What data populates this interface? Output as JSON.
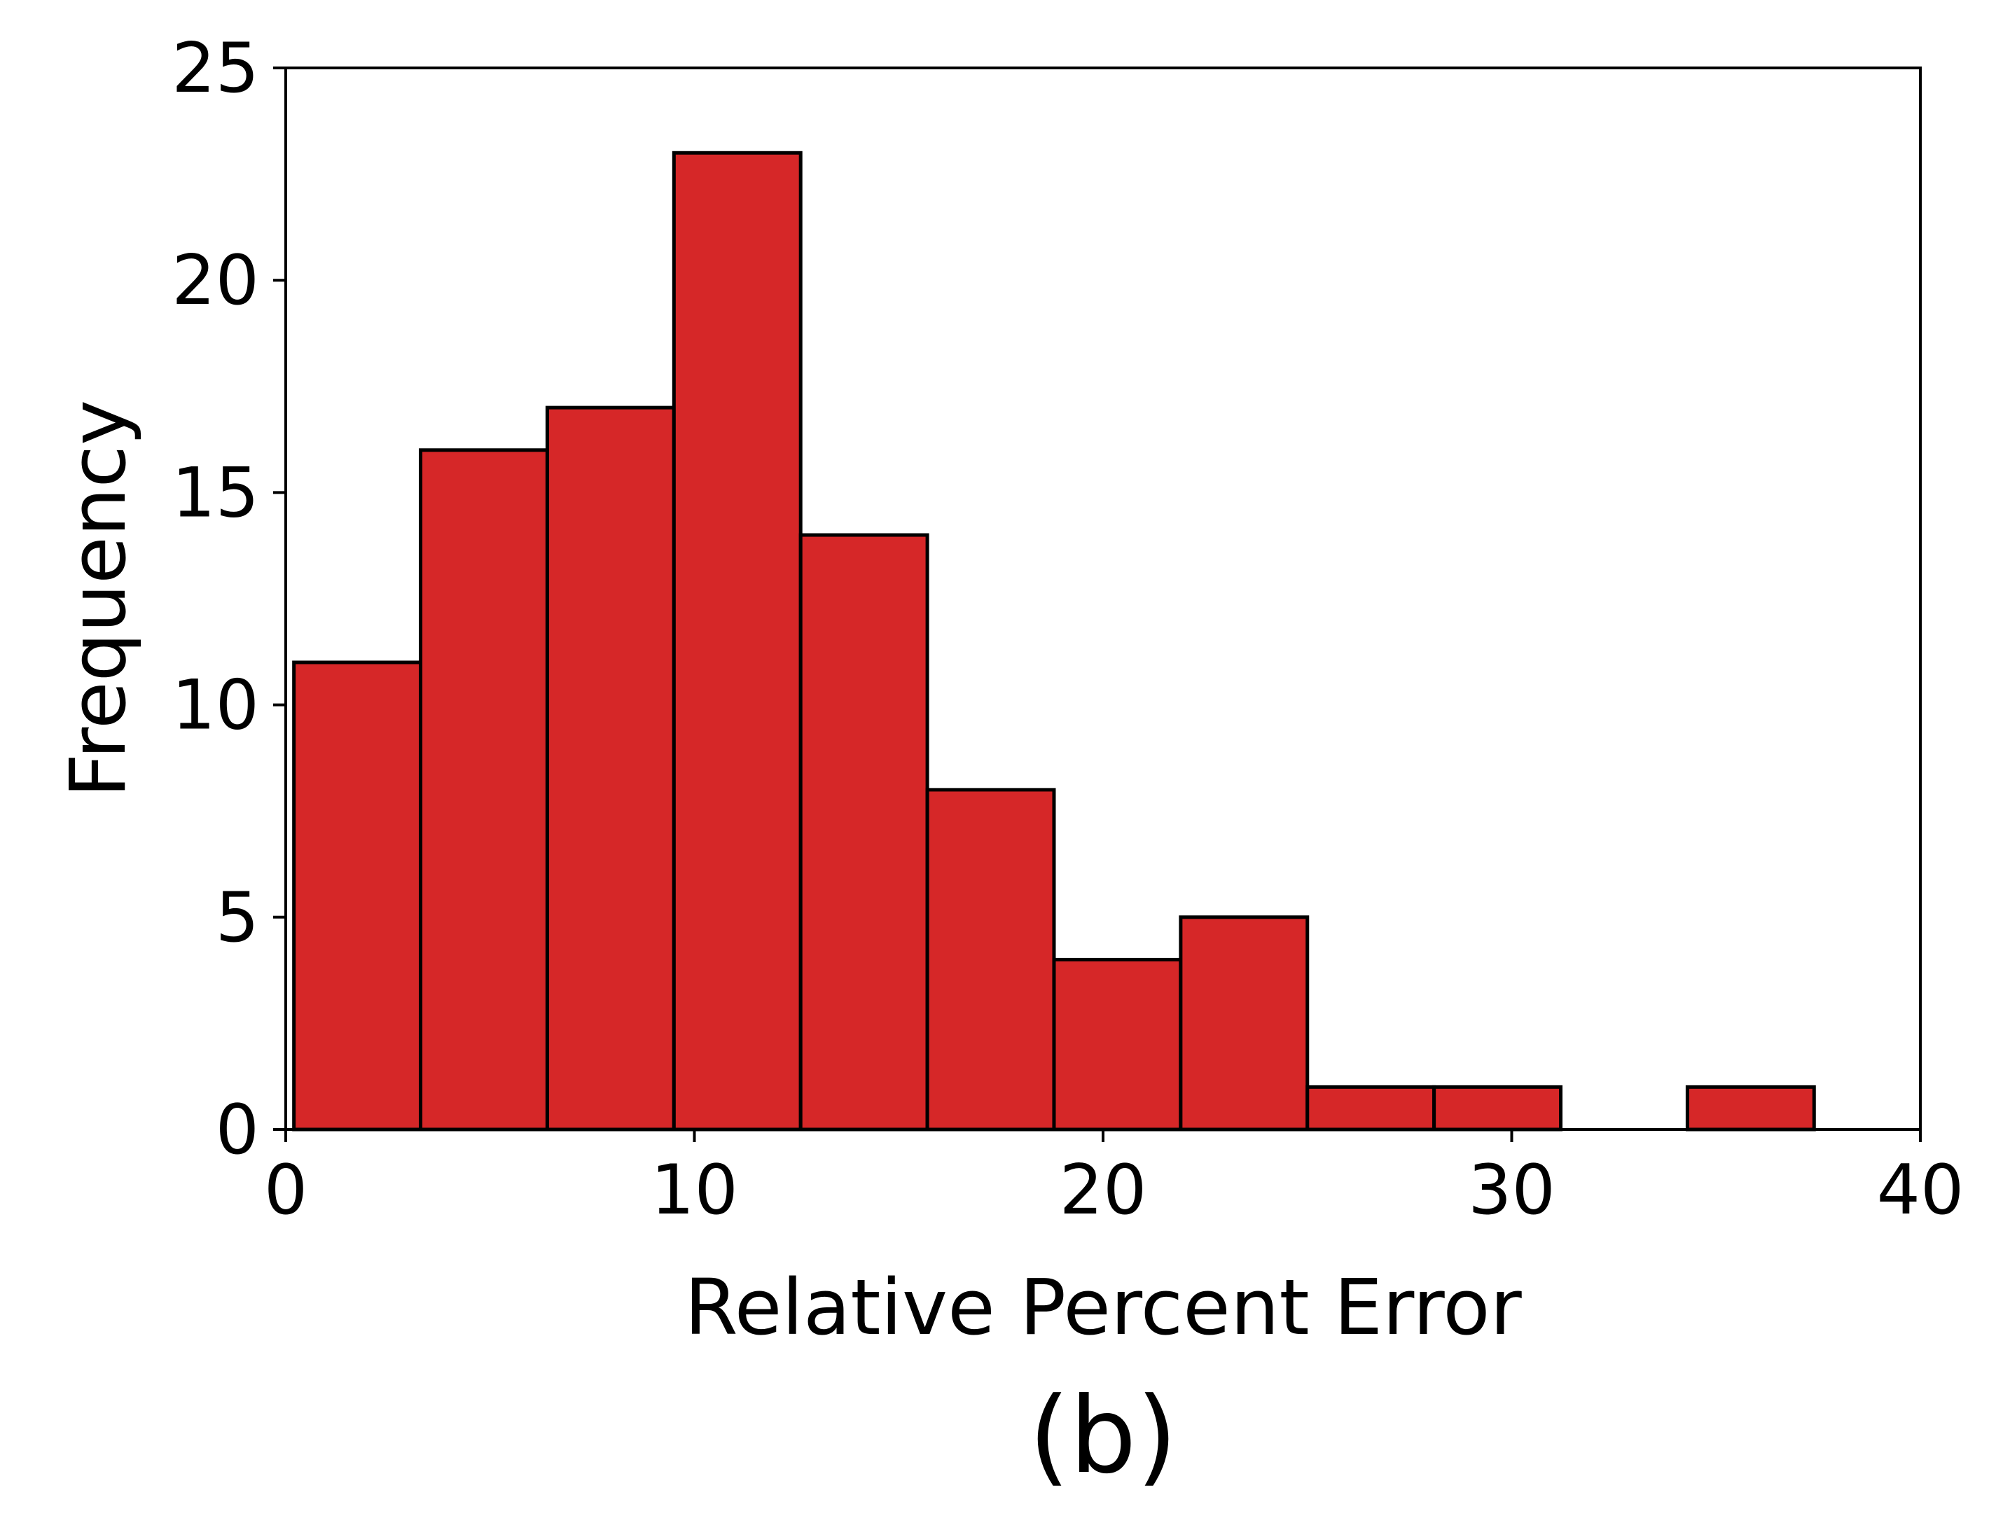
{
  "chart_data": {
    "type": "bar",
    "bin_edges": [
      0.2,
      3.3,
      6.4,
      9.5,
      12.6,
      15.7,
      18.8,
      21.9,
      25.0,
      28.1,
      31.2,
      34.3,
      37.4
    ],
    "values": [
      11,
      16,
      17,
      23,
      14,
      8,
      4,
      5,
      1,
      1,
      0,
      1
    ],
    "title": "",
    "xlabel": "Relative Percent Error",
    "ylabel": "Frequency",
    "xlim": [
      0,
      40
    ],
    "ylim": [
      0,
      25
    ],
    "x_ticks": [
      0,
      10,
      20,
      30,
      40
    ],
    "y_ticks": [
      0,
      5,
      10,
      15,
      20,
      25
    ],
    "grid": false,
    "bar_color": "#d62728",
    "edge_color": "#000000"
  },
  "panel_label": "(b)"
}
